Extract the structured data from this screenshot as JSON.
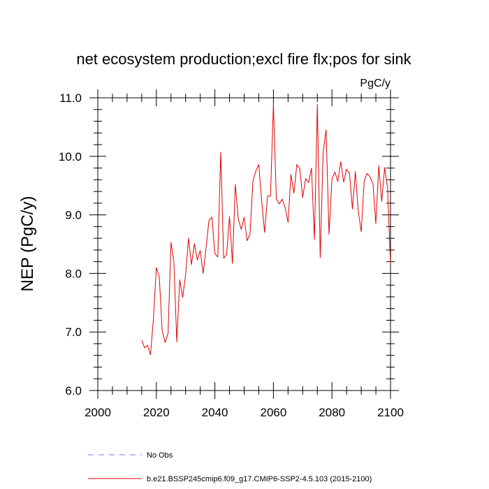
{
  "chart_data": {
    "type": "line",
    "title": "net ecosystem production;excl fire flx;pos for sink",
    "units_label": "PgC/y",
    "ylabel": "NEP  (PgC/y)",
    "xlabel": "",
    "xlim": [
      2000,
      2100
    ],
    "ylim": [
      6.0,
      11.0
    ],
    "x_ticks": [
      2000,
      2020,
      2040,
      2060,
      2080,
      2100
    ],
    "y_ticks": [
      6.0,
      7.0,
      8.0,
      9.0,
      10.0,
      11.0
    ],
    "x_tick_labels": [
      "2000",
      "2020",
      "2040",
      "2060",
      "2080",
      "2100"
    ],
    "y_tick_labels": [
      "6.0",
      "7.0",
      "8.0",
      "9.0",
      "10.0",
      "11.0"
    ],
    "grid": false,
    "legend_position": "bottom",
    "series": [
      {
        "name": "b.e21.BSSP245cmip6.f09_g17.CMIP6-SSP2-4.5.103 (2015-2100)",
        "color": "#e00000",
        "style": "solid",
        "x": [
          2015,
          2016,
          2017,
          2018,
          2019,
          2020,
          2021,
          2022,
          2023,
          2024,
          2025,
          2026,
          2027,
          2028,
          2029,
          2030,
          2031,
          2032,
          2033,
          2034,
          2035,
          2036,
          2037,
          2038,
          2039,
          2040,
          2041,
          2042,
          2043,
          2044,
          2045,
          2046,
          2047,
          2048,
          2049,
          2050,
          2051,
          2052,
          2053,
          2054,
          2055,
          2056,
          2057,
          2058,
          2059,
          2060,
          2061,
          2062,
          2063,
          2064,
          2065,
          2066,
          2067,
          2068,
          2069,
          2070,
          2071,
          2072,
          2073,
          2074,
          2075,
          2076,
          2077,
          2078,
          2079,
          2080,
          2081,
          2082,
          2083,
          2084,
          2085,
          2086,
          2087,
          2088,
          2089,
          2090,
          2091,
          2092,
          2093,
          2094,
          2095,
          2096,
          2097,
          2098,
          2099,
          2100
        ],
        "values": [
          6.86,
          6.73,
          6.77,
          6.61,
          7.22,
          8.1,
          7.94,
          7.02,
          6.82,
          6.98,
          8.53,
          8.2,
          6.83,
          7.89,
          7.59,
          7.98,
          8.6,
          8.15,
          8.51,
          8.23,
          8.39,
          8.0,
          8.44,
          8.91,
          8.96,
          8.34,
          8.28,
          10.07,
          8.26,
          8.32,
          8.97,
          8.17,
          9.52,
          8.93,
          8.75,
          8.96,
          8.56,
          8.67,
          9.58,
          9.75,
          9.86,
          9.23,
          8.7,
          9.32,
          9.32,
          10.9,
          9.27,
          9.19,
          9.27,
          9.12,
          8.87,
          9.69,
          9.37,
          9.86,
          9.79,
          9.3,
          9.62,
          9.55,
          9.8,
          8.58,
          10.89,
          8.27,
          10.07,
          10.45,
          8.67,
          9.62,
          9.73,
          9.57,
          9.91,
          9.56,
          9.78,
          9.71,
          9.1,
          9.74,
          9.06,
          8.71,
          9.57,
          9.71,
          9.65,
          9.53,
          8.85,
          9.84,
          9.23,
          9.81,
          9.46,
          8.15
        ]
      },
      {
        "name": "No Obs",
        "color": "#7777ee",
        "style": "dashed",
        "values": []
      }
    ]
  }
}
